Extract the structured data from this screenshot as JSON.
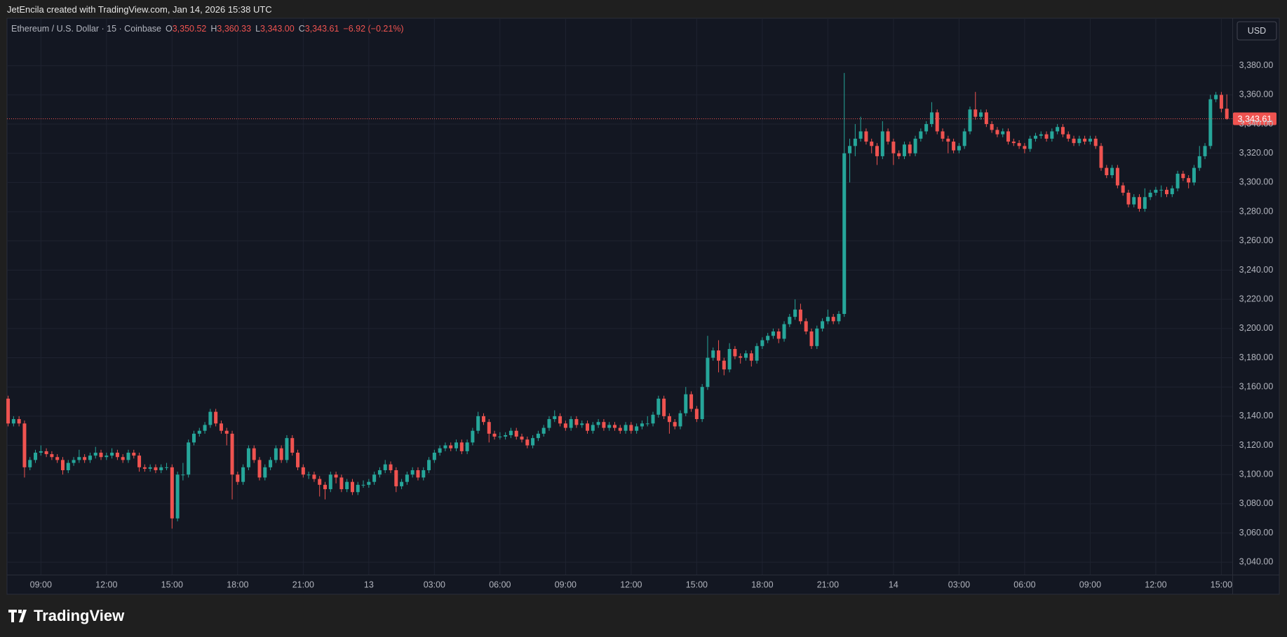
{
  "attribution": "JetEncila created with TradingView.com, Jan 14, 2026 15:38 UTC",
  "brand": "TradingView",
  "chart_data": {
    "type": "candlestick",
    "title": "Ethereum / U.S. Dollar · 15 · Coinbase",
    "legend": [
      {
        "key": "O",
        "value": "3,350.52"
      },
      {
        "key": "H",
        "value": "3,360.33"
      },
      {
        "key": "L",
        "value": "3,343.00"
      },
      {
        "key": "C",
        "value": "3,343.61"
      }
    ],
    "change": "−6.92 (−0.21%)",
    "currency": "USD",
    "up_color": "#26a69a",
    "down_color": "#ef5350",
    "grid": true,
    "last_price": {
      "value": 3343.61,
      "label": "3,343.61"
    },
    "ylim": [
      3031.5,
      3412
    ],
    "yticks": [
      {
        "value": 3040,
        "label": "3,040.00"
      },
      {
        "value": 3060,
        "label": "3,060.00"
      },
      {
        "value": 3080,
        "label": "3,080.00"
      },
      {
        "value": 3100,
        "label": "3,100.00"
      },
      {
        "value": 3120,
        "label": "3,120.00"
      },
      {
        "value": 3140,
        "label": "3,140.00"
      },
      {
        "value": 3160,
        "label": "3,160.00"
      },
      {
        "value": 3180,
        "label": "3,180.00"
      },
      {
        "value": 3200,
        "label": "3,200.00"
      },
      {
        "value": 3220,
        "label": "3,220.00"
      },
      {
        "value": 3240,
        "label": "3,240.00"
      },
      {
        "value": 3260,
        "label": "3,260.00"
      },
      {
        "value": 3280,
        "label": "3,280.00"
      },
      {
        "value": 3300,
        "label": "3,300.00"
      },
      {
        "value": 3320,
        "label": "3,320.00"
      },
      {
        "value": 3340,
        "label": "3,340.00"
      },
      {
        "value": 3360,
        "label": "3,360.00"
      },
      {
        "value": 3380,
        "label": "3,380.00"
      }
    ],
    "xlim": [
      -0.2,
      224
    ],
    "xticks": [
      {
        "value": 6,
        "label": "09:00"
      },
      {
        "value": 18,
        "label": "12:00"
      },
      {
        "value": 30,
        "label": "15:00"
      },
      {
        "value": 42,
        "label": "18:00"
      },
      {
        "value": 54,
        "label": "21:00"
      },
      {
        "value": 66,
        "label": "13"
      },
      {
        "value": 78,
        "label": "03:00"
      },
      {
        "value": 90,
        "label": "06:00"
      },
      {
        "value": 102,
        "label": "09:00"
      },
      {
        "value": 114,
        "label": "12:00"
      },
      {
        "value": 126,
        "label": "15:00"
      },
      {
        "value": 138,
        "label": "18:00"
      },
      {
        "value": 150,
        "label": "21:00"
      },
      {
        "value": 162,
        "label": "14"
      },
      {
        "value": 174,
        "label": "03:00"
      },
      {
        "value": 186,
        "label": "06:00"
      },
      {
        "value": 198,
        "label": "09:00"
      },
      {
        "value": 210,
        "label": "12:00"
      },
      {
        "value": 222,
        "label": "15:00"
      }
    ],
    "candles": {
      "open": [
        3152,
        3135,
        3138,
        3135,
        3105,
        3110,
        3115,
        3116,
        3114,
        3112,
        3110,
        3103,
        3108,
        3110,
        3112,
        3110,
        3113,
        3115,
        3112,
        3113,
        3115,
        3112,
        3110,
        3115,
        3113,
        3105,
        3104,
        3105,
        3103,
        3105,
        3105,
        3070,
        3100,
        3100,
        3122,
        3128,
        3130,
        3134,
        3143,
        3135,
        3130,
        3128,
        3100,
        3095,
        3105,
        3118,
        3110,
        3098,
        3105,
        3110,
        3118,
        3110,
        3125,
        3115,
        3105,
        3100,
        3100,
        3097,
        3093,
        3090,
        3100,
        3098,
        3090,
        3095,
        3088,
        3093,
        3093,
        3095,
        3100,
        3103,
        3107,
        3103,
        3092,
        3095,
        3100,
        3103,
        3098,
        3103,
        3110,
        3115,
        3118,
        3120,
        3118,
        3122,
        3116,
        3122,
        3130,
        3140,
        3136,
        3128,
        3126,
        3126,
        3127,
        3130,
        3126,
        3124,
        3120,
        3125,
        3128,
        3132,
        3138,
        3140,
        3135,
        3132,
        3138,
        3134,
        3135,
        3130,
        3134,
        3136,
        3132,
        3134,
        3132,
        3130,
        3134,
        3130,
        3133,
        3135,
        3135,
        3141,
        3152,
        3140,
        3136,
        3133,
        3142,
        3155,
        3145,
        3138,
        3160,
        3180,
        3185,
        3178,
        3172,
        3186,
        3181,
        3180,
        3183,
        3178,
        3188,
        3192,
        3195,
        3198,
        3193,
        3203,
        3208,
        3213,
        3205,
        3198,
        3188,
        3200,
        3205,
        3208,
        3205,
        3210,
        3320,
        3325,
        3330,
        3335,
        3328,
        3325,
        3318,
        3335,
        3328,
        3320,
        3318,
        3326,
        3320,
        3330,
        3335,
        3340,
        3348,
        3335,
        3330,
        3328,
        3322,
        3325,
        3335,
        3350,
        3345,
        3348,
        3340,
        3336,
        3333,
        3335,
        3328,
        3327,
        3325,
        3323,
        3330,
        3332,
        3333,
        3330,
        3335,
        3338,
        3333,
        3330,
        3327,
        3330,
        3328,
        3330,
        3325,
        3310,
        3305,
        3310,
        3298,
        3293,
        3285,
        3290,
        3282,
        3290,
        3293,
        3295,
        3295,
        3292,
        3296,
        3306,
        3303,
        3300,
        3310,
        3318,
        3325,
        3357,
        3360,
        3350.52
      ],
      "high": [
        3154,
        3140,
        3140,
        3137,
        3112,
        3117,
        3120,
        3118,
        3116,
        3114,
        3112,
        3110,
        3112,
        3117,
        3114,
        3115,
        3119,
        3117,
        3115,
        3118,
        3117,
        3114,
        3117,
        3117,
        3115,
        3107,
        3107,
        3107,
        3107,
        3108,
        3107,
        3102,
        3108,
        3124,
        3130,
        3132,
        3136,
        3145,
        3145,
        3137,
        3132,
        3130,
        3102,
        3107,
        3120,
        3120,
        3112,
        3107,
        3112,
        3120,
        3120,
        3127,
        3127,
        3117,
        3107,
        3102,
        3102,
        3099,
        3095,
        3102,
        3102,
        3100,
        3097,
        3097,
        3095,
        3096,
        3097,
        3102,
        3105,
        3110,
        3109,
        3105,
        3097,
        3102,
        3105,
        3105,
        3105,
        3112,
        3117,
        3120,
        3122,
        3122,
        3124,
        3124,
        3124,
        3132,
        3143,
        3142,
        3138,
        3130,
        3129,
        3129,
        3132,
        3132,
        3128,
        3126,
        3127,
        3130,
        3134,
        3140,
        3144,
        3142,
        3137,
        3140,
        3140,
        3137,
        3137,
        3136,
        3138,
        3138,
        3136,
        3136,
        3134,
        3136,
        3136,
        3135,
        3137,
        3140,
        3143,
        3154,
        3154,
        3142,
        3138,
        3144,
        3160,
        3157,
        3147,
        3162,
        3195,
        3187,
        3192,
        3180,
        3190,
        3188,
        3183,
        3185,
        3185,
        3190,
        3194,
        3197,
        3200,
        3200,
        3205,
        3210,
        3220,
        3217,
        3207,
        3200,
        3202,
        3207,
        3213,
        3210,
        3212,
        3375,
        3330,
        3340,
        3345,
        3337,
        3330,
        3327,
        3342,
        3337,
        3330,
        3322,
        3328,
        3328,
        3332,
        3337,
        3342,
        3355,
        3350,
        3337,
        3332,
        3330,
        3327,
        3337,
        3352,
        3362,
        3350,
        3350,
        3342,
        3338,
        3337,
        3337,
        3330,
        3329,
        3327,
        3332,
        3334,
        3335,
        3335,
        3337,
        3340,
        3340,
        3335,
        3332,
        3332,
        3332,
        3332,
        3332,
        3327,
        3312,
        3312,
        3312,
        3300,
        3295,
        3292,
        3292,
        3296,
        3295,
        3297,
        3298,
        3297,
        3298,
        3308,
        3308,
        3305,
        3312,
        3325,
        3327,
        3360,
        3362,
        3362,
        3360.33
      ],
      "low": [
        3133,
        3133,
        3133,
        3098,
        3103,
        3108,
        3113,
        3112,
        3110,
        3108,
        3100,
        3101,
        3106,
        3108,
        3108,
        3108,
        3111,
        3110,
        3110,
        3111,
        3110,
        3108,
        3108,
        3111,
        3102,
        3102,
        3102,
        3101,
        3101,
        3103,
        3063,
        3068,
        3096,
        3098,
        3120,
        3126,
        3128,
        3132,
        3133,
        3128,
        3120,
        3083,
        3093,
        3093,
        3103,
        3108,
        3096,
        3096,
        3103,
        3108,
        3108,
        3108,
        3113,
        3103,
        3098,
        3097,
        3095,
        3085,
        3083,
        3088,
        3094,
        3088,
        3088,
        3086,
        3086,
        3091,
        3091,
        3093,
        3098,
        3101,
        3101,
        3088,
        3090,
        3093,
        3098,
        3096,
        3096,
        3101,
        3108,
        3113,
        3116,
        3116,
        3116,
        3114,
        3114,
        3120,
        3128,
        3134,
        3122,
        3124,
        3124,
        3124,
        3125,
        3124,
        3122,
        3118,
        3118,
        3123,
        3126,
        3130,
        3136,
        3133,
        3130,
        3130,
        3132,
        3132,
        3128,
        3128,
        3132,
        3130,
        3130,
        3130,
        3128,
        3128,
        3128,
        3128,
        3131,
        3133,
        3133,
        3139,
        3138,
        3128,
        3131,
        3131,
        3140,
        3143,
        3136,
        3136,
        3158,
        3178,
        3170,
        3168,
        3170,
        3179,
        3176,
        3178,
        3174,
        3176,
        3186,
        3190,
        3193,
        3190,
        3191,
        3201,
        3206,
        3203,
        3196,
        3186,
        3186,
        3198,
        3203,
        3203,
        3203,
        3208,
        3300,
        3318,
        3328,
        3326,
        3320,
        3312,
        3316,
        3326,
        3312,
        3316,
        3316,
        3318,
        3318,
        3328,
        3333,
        3338,
        3333,
        3328,
        3320,
        3320,
        3320,
        3323,
        3333,
        3343,
        3343,
        3338,
        3334,
        3331,
        3331,
        3326,
        3325,
        3323,
        3320,
        3321,
        3328,
        3330,
        3328,
        3328,
        3333,
        3331,
        3328,
        3325,
        3325,
        3326,
        3326,
        3323,
        3308,
        3303,
        3303,
        3296,
        3291,
        3283,
        3283,
        3280,
        3280,
        3288,
        3291,
        3290,
        3290,
        3290,
        3294,
        3301,
        3296,
        3298,
        3308,
        3316,
        3323,
        3355,
        3348,
        3343
      ],
      "close": [
        3135,
        3138,
        3135,
        3105,
        3110,
        3115,
        3116,
        3114,
        3112,
        3110,
        3103,
        3108,
        3110,
        3112,
        3110,
        3113,
        3115,
        3112,
        3113,
        3115,
        3112,
        3110,
        3115,
        3113,
        3105,
        3104,
        3105,
        3103,
        3105,
        3105,
        3070,
        3100,
        3100,
        3122,
        3128,
        3130,
        3134,
        3143,
        3135,
        3130,
        3128,
        3100,
        3095,
        3105,
        3118,
        3110,
        3098,
        3105,
        3110,
        3118,
        3110,
        3125,
        3115,
        3105,
        3100,
        3100,
        3097,
        3093,
        3090,
        3100,
        3098,
        3090,
        3095,
        3088,
        3093,
        3093,
        3095,
        3100,
        3103,
        3107,
        3103,
        3092,
        3095,
        3100,
        3103,
        3098,
        3103,
        3110,
        3115,
        3118,
        3120,
        3118,
        3122,
        3116,
        3122,
        3130,
        3140,
        3136,
        3128,
        3126,
        3126,
        3127,
        3130,
        3126,
        3124,
        3120,
        3125,
        3128,
        3132,
        3138,
        3140,
        3135,
        3132,
        3138,
        3134,
        3135,
        3130,
        3134,
        3136,
        3132,
        3134,
        3132,
        3130,
        3134,
        3130,
        3133,
        3135,
        3135,
        3141,
        3152,
        3140,
        3136,
        3133,
        3142,
        3155,
        3145,
        3138,
        3160,
        3180,
        3185,
        3178,
        3172,
        3186,
        3181,
        3180,
        3183,
        3178,
        3188,
        3192,
        3195,
        3198,
        3193,
        3203,
        3208,
        3213,
        3205,
        3198,
        3188,
        3200,
        3205,
        3208,
        3205,
        3210,
        3320,
        3325,
        3330,
        3335,
        3328,
        3325,
        3318,
        3335,
        3328,
        3320,
        3318,
        3326,
        3320,
        3330,
        3335,
        3340,
        3348,
        3335,
        3330,
        3328,
        3322,
        3325,
        3335,
        3350,
        3345,
        3348,
        3340,
        3336,
        3333,
        3335,
        3328,
        3327,
        3325,
        3323,
        3330,
        3332,
        3333,
        3330,
        3335,
        3338,
        3333,
        3330,
        3327,
        3330,
        3328,
        3330,
        3325,
        3310,
        3305,
        3310,
        3298,
        3293,
        3285,
        3290,
        3282,
        3290,
        3293,
        3295,
        3295,
        3292,
        3296,
        3306,
        3303,
        3300,
        3310,
        3318,
        3325,
        3357,
        3360,
        3350.52,
        3343.61
      ]
    }
  }
}
